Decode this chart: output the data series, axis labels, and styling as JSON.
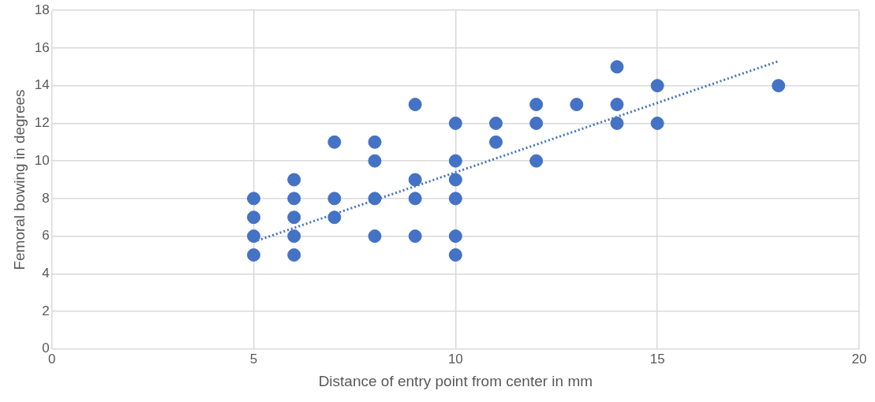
{
  "chart_data": {
    "type": "scatter",
    "xlabel": "Distance of entry point from center in mm",
    "ylabel": "Femoral bowing in degrees",
    "xlim": [
      0,
      20
    ],
    "xticks": [
      0,
      5,
      10,
      15,
      20
    ],
    "ylim": [
      0,
      18
    ],
    "yticks": [
      0,
      2,
      4,
      6,
      8,
      10,
      12,
      14,
      16,
      18
    ],
    "grid": true,
    "legend": false,
    "marker": "circle",
    "series": [
      {
        "color": "#4472c4",
        "x": [
          5,
          5,
          5,
          5,
          6,
          6,
          6,
          6,
          6,
          7,
          7,
          7,
          8,
          8,
          8,
          8,
          9,
          9,
          9,
          9,
          10,
          10,
          10,
          10,
          10,
          10,
          11,
          11,
          12,
          12,
          12,
          13,
          14,
          14,
          14,
          15,
          15,
          18
        ],
        "values": [
          5,
          6,
          7,
          8,
          5,
          6,
          7,
          8,
          9,
          7,
          8,
          11,
          6,
          8,
          10,
          11,
          6,
          8,
          9,
          13,
          5,
          6,
          8,
          9,
          10,
          12,
          11,
          12,
          10,
          12,
          13,
          13,
          12,
          13,
          15,
          12,
          14,
          14
        ]
      },
      {
        "type": "line",
        "color": "#4472c4",
        "line_style": "dotted",
        "marker": "none",
        "x": [
          5,
          18
        ],
        "values": [
          5.7,
          15.3
        ]
      }
    ]
  }
}
